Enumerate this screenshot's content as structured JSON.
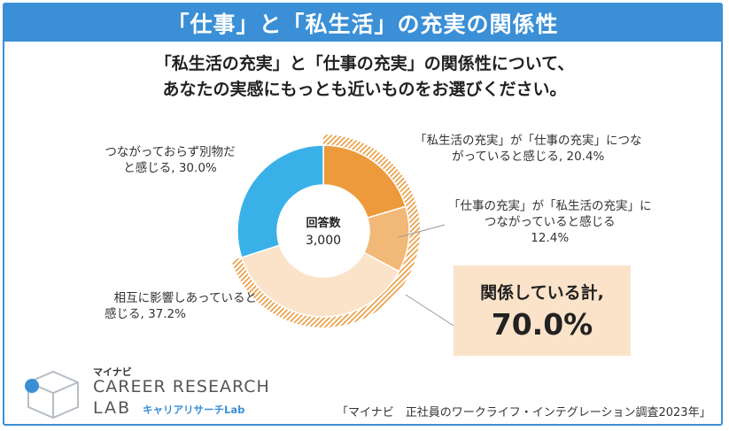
{
  "header": {
    "title": "「仕事」と「私生活」の充実の関係性"
  },
  "question": {
    "line1": "「私生活の充実」と「仕事の充実」の関係性について、",
    "line2": "あなたの実感にもっとも近いものをお選びください。"
  },
  "chart_data": {
    "type": "pie",
    "style": "donut",
    "center_label": "回答数",
    "center_value": "3,000",
    "slices": [
      {
        "label_line1": "「私生活の充実」が「仕事の充実」につな",
        "label_line2": "がっていると感じる, 20.4%",
        "value": 20.4,
        "color": "#ec9a3c"
      },
      {
        "label_line1": "「仕事の充実」が「私生活の充実」に",
        "label_line2": "つながっていると感じる",
        "label_line3": "12.4%",
        "value": 12.4,
        "color": "#f2b877"
      },
      {
        "label_line1": "相互に影響しあっていると",
        "label_line2": "感じる, 37.2%",
        "value": 37.2,
        "color": "#fbe3c9"
      },
      {
        "label_line1": "つながっておらず別物だ",
        "label_line2": "と感じる, 30.0%",
        "value": 30.0,
        "color": "#3ab0e8"
      }
    ],
    "related_total": {
      "label": "関係している計,",
      "value": "70.0%",
      "outline_color": "#ec9a3c"
    }
  },
  "logo": {
    "small": "マイナビ",
    "main": "CAREER RESEARCH",
    "lab": "LAB",
    "kana": "キャリアリサーチLab",
    "accent": "#3a8fd6"
  },
  "source": "「マイナビ　正社員のワークライフ・インテグレーション調査2023年」"
}
